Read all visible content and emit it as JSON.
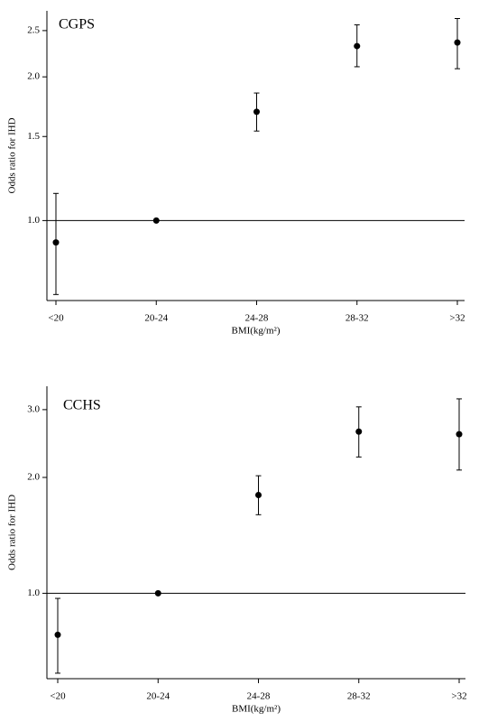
{
  "chart_data": [
    {
      "type": "errorbar",
      "title": "CGPS",
      "xlabel": "BMI(kg/m²)",
      "ylabel": "Odds ratio for IHD",
      "categories": [
        "<20",
        "20-24",
        "24-28",
        "28-32",
        ">32"
      ],
      "values": [
        0.9,
        1.0,
        1.69,
        2.32,
        2.36
      ],
      "lower": [
        0.7,
        null,
        1.54,
        2.1,
        2.08
      ],
      "upper": [
        1.14,
        null,
        1.85,
        2.57,
        2.65
      ],
      "ylim": [
        0.68,
        2.75
      ],
      "log": true,
      "reference_line": 1,
      "yticks": [
        {
          "value": 1,
          "label": "1.0"
        },
        1.5,
        {
          "value": 2,
          "label": "2.0"
        },
        2.5
      ],
      "color": "#000000"
    },
    {
      "type": "errorbar",
      "title": "CCHS",
      "xlabel": "BMI(kg/m²)",
      "ylabel": "Odds ratio for IHD",
      "categories": [
        "<20",
        "20-24",
        "24-28",
        "28-32",
        ">32"
      ],
      "values": [
        0.78,
        1.0,
        1.8,
        2.63,
        2.59
      ],
      "lower": [
        0.62,
        null,
        1.6,
        2.26,
        2.09
      ],
      "upper": [
        0.97,
        null,
        2.02,
        3.05,
        3.2
      ],
      "ylim": [
        0.6,
        3.45
      ],
      "log": true,
      "reference_line": 1,
      "yticks": [
        {
          "value": 1,
          "label": "1.0"
        },
        {
          "value": 2,
          "label": "2.0"
        },
        {
          "value": 3,
          "label": "3.0"
        }
      ],
      "color": "#000000"
    }
  ]
}
